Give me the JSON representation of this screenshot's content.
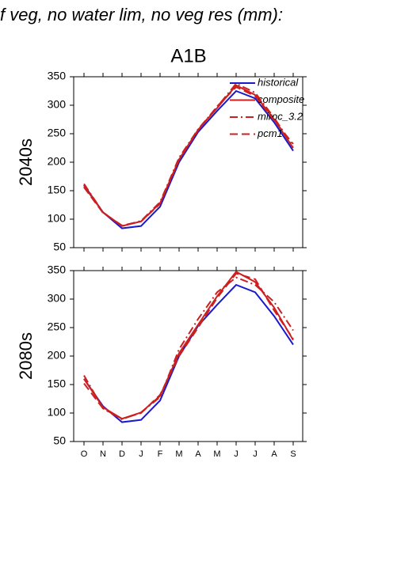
{
  "title": "f veg, no water lim, no veg res (mm):",
  "chart_data": [
    {
      "type": "line",
      "title": "A1B",
      "ylabel": "2040s",
      "categories": [
        "O",
        "N",
        "D",
        "J",
        "F",
        "M",
        "A",
        "M",
        "J",
        "J",
        "A",
        "S"
      ],
      "ylim": [
        50,
        350
      ],
      "yticks": [
        50,
        100,
        150,
        200,
        250,
        300,
        350
      ],
      "legend": "upper right",
      "series": [
        {
          "name": "historical",
          "color": "#1a1acc",
          "dash": "solid",
          "values": [
            160,
            112,
            84,
            88,
            122,
            200,
            253,
            290,
            325,
            312,
            270,
            220
          ]
        },
        {
          "name": "composite",
          "color": "#cc2020",
          "dash": "solid",
          "values": [
            158,
            112,
            88,
            96,
            128,
            205,
            257,
            295,
            335,
            318,
            275,
            225
          ]
        },
        {
          "name": "miroc_3.2",
          "color": "#cc2020",
          "dash": "dashdot",
          "values": [
            162,
            112,
            88,
            97,
            130,
            208,
            258,
            297,
            338,
            322,
            278,
            228
          ]
        },
        {
          "name": "pcm1",
          "color": "#cc2020",
          "dash": "dashed",
          "values": [
            156,
            111,
            89,
            96,
            127,
            204,
            256,
            298,
            332,
            316,
            273,
            232
          ]
        }
      ]
    },
    {
      "type": "line",
      "ylabel": "2080s",
      "categories": [
        "O",
        "N",
        "D",
        "J",
        "F",
        "M",
        "A",
        "M",
        "J",
        "J",
        "A",
        "S"
      ],
      "ylim": [
        50,
        350
      ],
      "yticks": [
        50,
        100,
        150,
        200,
        250,
        300,
        350
      ],
      "series": [
        {
          "color": "#1a1acc",
          "dash": "solid",
          "values": [
            160,
            112,
            84,
            88,
            122,
            200,
            253,
            290,
            325,
            312,
            270,
            220
          ]
        },
        {
          "color": "#cc2020",
          "dash": "solid",
          "values": [
            160,
            110,
            90,
            101,
            130,
            205,
            255,
            305,
            348,
            330,
            285,
            228
          ]
        },
        {
          "color": "#cc2020",
          "dash": "dashdot",
          "values": [
            166,
            108,
            89,
            101,
            128,
            212,
            265,
            312,
            338,
            325,
            295,
            245
          ]
        },
        {
          "color": "#cc2020",
          "dash": "dashed",
          "values": [
            152,
            108,
            90,
            100,
            132,
            200,
            250,
            302,
            345,
            335,
            280,
            230
          ]
        }
      ]
    }
  ]
}
